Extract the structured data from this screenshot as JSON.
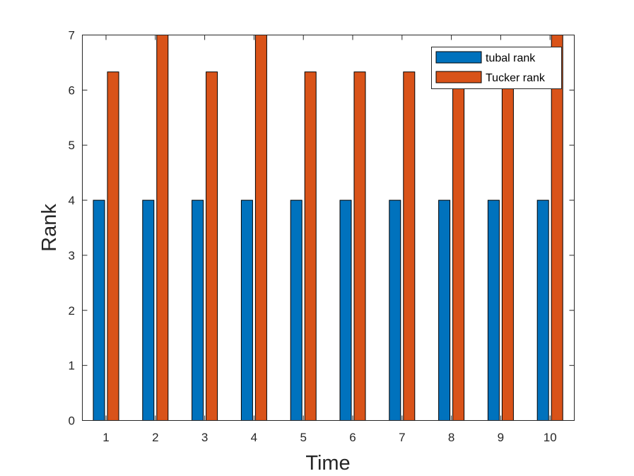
{
  "chart_data": {
    "type": "bar",
    "categories": [
      "1",
      "2",
      "3",
      "4",
      "5",
      "6",
      "7",
      "8",
      "9",
      "10"
    ],
    "series": [
      {
        "name": "tubal rank",
        "color": "#0072BD",
        "values": [
          4,
          4,
          4,
          4,
          4,
          4,
          4,
          4,
          4,
          4
        ]
      },
      {
        "name": "Tucker rank",
        "color": "#D95319",
        "values": [
          6.33,
          7,
          6.33,
          7,
          6.33,
          6.33,
          6.33,
          6.33,
          6.33,
          7
        ]
      }
    ],
    "xlabel": "Time",
    "ylabel": "Rank",
    "ylim": [
      0,
      7
    ],
    "yticks": [
      "0",
      "1",
      "2",
      "3",
      "4",
      "5",
      "6",
      "7"
    ],
    "grid": false,
    "legend_position": "top-right"
  }
}
